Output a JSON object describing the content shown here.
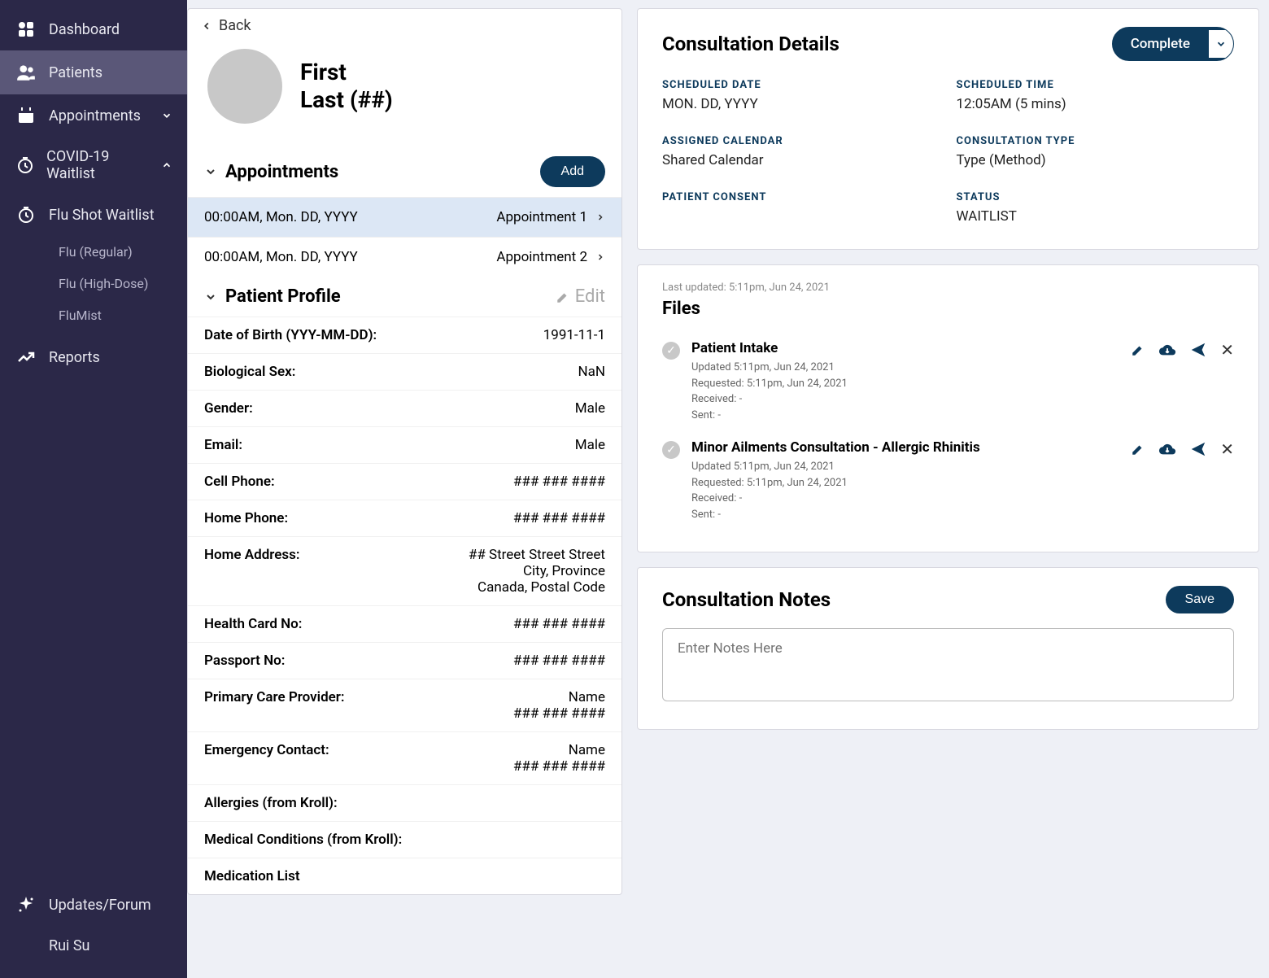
{
  "colors": {
    "sidebar_bg": "#2b2848",
    "sidebar_active": "#5a5778",
    "accent": "#0d3a5c",
    "panel_bg": "#ffffff",
    "page_bg": "#eef0f6",
    "muted_text": "#888888"
  },
  "sidebar": {
    "items": [
      {
        "icon": "dashboard",
        "label": "Dashboard"
      },
      {
        "icon": "patients",
        "label": "Patients",
        "active": true
      },
      {
        "icon": "calendar",
        "label": "Appointments",
        "chevron": "down"
      },
      {
        "icon": "clock",
        "label": "COVID-19 Waitlist",
        "chevron": "up"
      },
      {
        "icon": "clock",
        "label": "Flu Shot Waitlist"
      }
    ],
    "subitems": [
      "Flu (Regular)",
      "Flu (High-Dose)",
      "FluMist"
    ],
    "reports_icon": "trend",
    "reports_label": "Reports",
    "bottom": [
      {
        "icon": "sparkle",
        "label": "Updates/Forum"
      },
      {
        "icon": "",
        "label": "Rui Su"
      }
    ]
  },
  "back_label": "Back",
  "patient": {
    "first": "First",
    "last_masked": "Last (##)"
  },
  "appointments": {
    "title": "Appointments",
    "add_label": "Add",
    "rows": [
      {
        "time": "00:00AM, Mon. DD, YYYY",
        "label": "Appointment 1",
        "selected": true
      },
      {
        "time": "00:00AM, Mon. DD, YYYY",
        "label": "Appointment 2",
        "selected": false
      }
    ]
  },
  "profile": {
    "title": "Patient Profile",
    "edit_label": "Edit",
    "rows": [
      {
        "k": "Date of Birth (YYY-MM-DD):",
        "v": "1991-11-1"
      },
      {
        "k": "Biological Sex:",
        "v": "NaN"
      },
      {
        "k": "Gender:",
        "v": "Male"
      },
      {
        "k": "Email:",
        "v": "Male"
      },
      {
        "k": "Cell Phone:",
        "v": "### ### ####"
      },
      {
        "k": "Home Phone:",
        "v": "### ### ####"
      },
      {
        "k": "Home Address:",
        "v": "## Street Street Street\nCity, Province\nCanada, Postal Code"
      },
      {
        "k": "Health Card No:",
        "v": "### ### ####"
      },
      {
        "k": "Passport No:",
        "v": "### ### ####"
      },
      {
        "k": "Primary Care Provider:",
        "v": "Name\n### ### ####"
      },
      {
        "k": "Emergency Contact:",
        "v": "Name\n### ### ####"
      },
      {
        "k": "Allergies (from Kroll):",
        "v": ""
      },
      {
        "k": "Medical Conditions (from Kroll):",
        "v": ""
      },
      {
        "k": "Medication List",
        "v": ""
      }
    ]
  },
  "details": {
    "title": "Consultation Details",
    "complete_label": "Complete",
    "fields": [
      {
        "label": "SCHEDULED DATE",
        "value": "MON. DD, YYYY"
      },
      {
        "label": "SCHEDULED TIME",
        "value": "12:05AM (5 mins)"
      },
      {
        "label": "ASSIGNED CALENDAR",
        "value": "Shared Calendar"
      },
      {
        "label": "CONSULTATION TYPE",
        "value": "Type (Method)"
      },
      {
        "label": "PATIENT CONSENT",
        "value": ""
      },
      {
        "label": "STATUS",
        "value": "WAITLIST"
      }
    ]
  },
  "files": {
    "last_updated": "Last updated: 5:11pm, Jun 24, 2021",
    "title": "Files",
    "items": [
      {
        "name": "Patient Intake",
        "updated": "Updated 5:11pm, Jun 24, 2021",
        "requested": "Requested: 5:11pm, Jun 24, 2021",
        "received": "Received: -",
        "sent": "Sent: -"
      },
      {
        "name": "Minor Ailments Consultation - Allergic Rhinitis",
        "updated": "Updated 5:11pm, Jun 24, 2021",
        "requested": "Requested: 5:11pm, Jun 24, 2021",
        "received": "Received: -",
        "sent": "Sent: -"
      }
    ]
  },
  "notes": {
    "title": "Consultation Notes",
    "save_label": "Save",
    "placeholder": "Enter Notes Here"
  }
}
